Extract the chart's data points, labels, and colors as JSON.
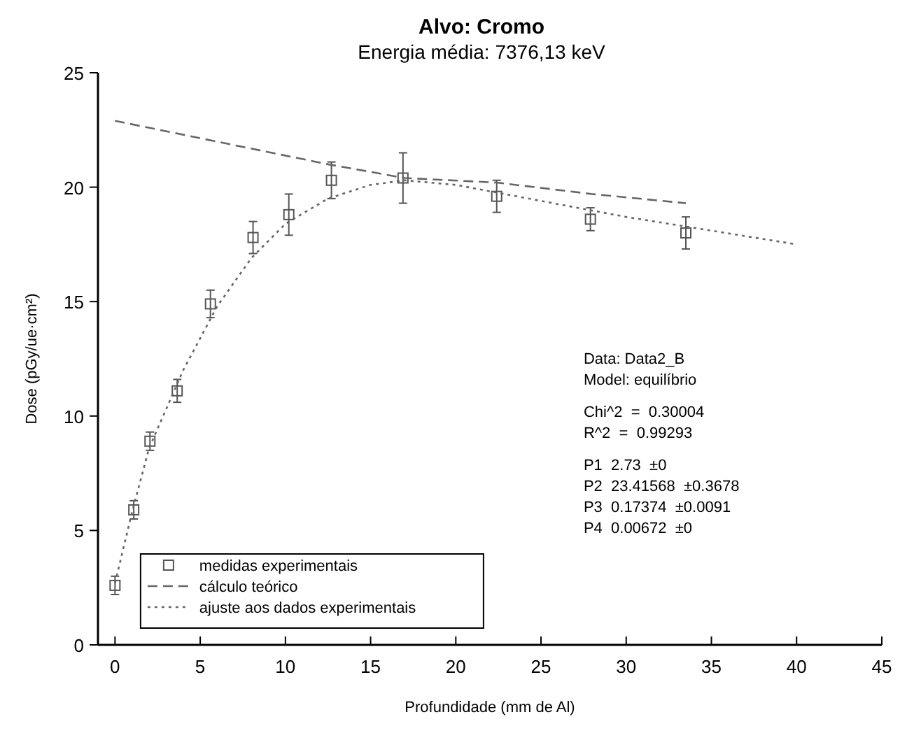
{
  "chart_data": {
    "type": "line",
    "title": "Alvo: Cromo",
    "subtitle": "Energia média: 7376,13 keV",
    "xlabel": "Profundidade (mm de Al)",
    "ylabel": "Dose (pGy/ue·cm²)",
    "xlim": [
      -1,
      45
    ],
    "xticks": [
      0,
      5,
      10,
      15,
      20,
      25,
      30,
      35,
      40,
      45
    ],
    "ylim": [
      0,
      25
    ],
    "yticks": [
      0,
      5,
      10,
      15,
      20,
      25
    ],
    "grid": false,
    "legend": "bottom left",
    "series": [
      {
        "name": "medidas experimentais",
        "type": "scatter",
        "marker": "square",
        "color": "#555555",
        "x": [
          0,
          1.1,
          2.05,
          3.65,
          5.6,
          8.1,
          10.2,
          12.7,
          16.9,
          22.4,
          27.9,
          33.5
        ],
        "values": [
          2.6,
          5.9,
          8.9,
          11.1,
          14.9,
          17.8,
          18.8,
          20.3,
          20.4,
          19.6,
          18.6,
          18.0
        ],
        "errors": [
          0.4,
          0.4,
          0.4,
          0.5,
          0.6,
          0.7,
          0.9,
          0.8,
          1.1,
          0.7,
          0.5,
          0.7
        ]
      },
      {
        "name": "cálculo teórico",
        "type": "line",
        "line_style": "dashed",
        "color": "#666666",
        "x": [
          0,
          12.5,
          17,
          22.4,
          28,
          33.5
        ],
        "values": [
          22.9,
          21.0,
          20.4,
          20.2,
          19.7,
          19.3
        ]
      },
      {
        "name": "ajuste aos dados experimentais",
        "type": "line",
        "line_style": "dotted",
        "color": "#666666",
        "x": [
          0,
          1,
          2,
          4,
          6,
          8,
          10,
          12.5,
          15,
          17,
          20,
          25,
          30,
          35,
          40
        ],
        "values": [
          2.7,
          5.8,
          8.6,
          12,
          14.8,
          16.9,
          18.4,
          19.5,
          20.1,
          20.3,
          20.1,
          19.4,
          18.7,
          18.1,
          17.5
        ]
      }
    ],
    "annotations": [
      "Data: Data2_B",
      "Model: equilíbrio",
      "Chi^2  =  0.30004",
      "R^2  =  0.99293",
      "P1  2.73  ±0",
      "P2  23.41568  ±0.3678",
      "P3  0.17374  ±0.0091",
      "P4  0.00672  ±0"
    ]
  }
}
